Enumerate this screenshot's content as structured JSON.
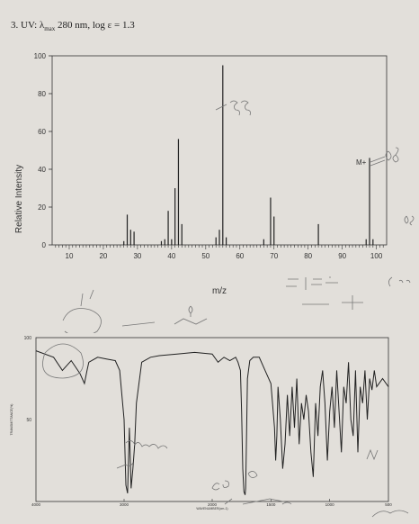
{
  "question": {
    "number": "3.",
    "uv_label": "UV: λ",
    "uv_sub": "max",
    "uv_rest": "280 nm, log ε = 1.3"
  },
  "chart_data": [
    {
      "type": "bar",
      "ylabel": "Relative Intensity",
      "xlabel": "m/z",
      "xlim": [
        5,
        103
      ],
      "ylim": [
        0,
        100
      ],
      "xticks": [
        10,
        20,
        30,
        40,
        50,
        60,
        70,
        80,
        90,
        100
      ],
      "yticks": [
        0,
        20,
        40,
        60,
        80,
        100
      ],
      "peaks": [
        {
          "mz": 26,
          "intensity": 2
        },
        {
          "mz": 27,
          "intensity": 16
        },
        {
          "mz": 28,
          "intensity": 8
        },
        {
          "mz": 29,
          "intensity": 7
        },
        {
          "mz": 37,
          "intensity": 2
        },
        {
          "mz": 38,
          "intensity": 3
        },
        {
          "mz": 39,
          "intensity": 18
        },
        {
          "mz": 40,
          "intensity": 3
        },
        {
          "mz": 41,
          "intensity": 30
        },
        {
          "mz": 42,
          "intensity": 56
        },
        {
          "mz": 43,
          "intensity": 11
        },
        {
          "mz": 53,
          "intensity": 4
        },
        {
          "mz": 54,
          "intensity": 8
        },
        {
          "mz": 55,
          "intensity": 95
        },
        {
          "mz": 56,
          "intensity": 4
        },
        {
          "mz": 67,
          "intensity": 3
        },
        {
          "mz": 69,
          "intensity": 25
        },
        {
          "mz": 70,
          "intensity": 15
        },
        {
          "mz": 83,
          "intensity": 11
        },
        {
          "mz": 97,
          "intensity": 3
        },
        {
          "mz": 98,
          "intensity": 46
        },
        {
          "mz": 99,
          "intensity": 3
        }
      ],
      "annotations": {
        "molecular_ion": "M+"
      }
    },
    {
      "type": "line",
      "ylabel": "TRANSMITTANCE(%)",
      "xlabel": "WAVENUMBER(cm-1)",
      "xticks": [
        "4000",
        "3000",
        "2000",
        "1500",
        "1000",
        "500"
      ],
      "yticks": [
        "100",
        "50"
      ],
      "x": [
        4000,
        3800,
        3700,
        3600,
        3500,
        3450,
        3420,
        3400,
        3300,
        3200,
        3100,
        3050,
        3000,
        2980,
        2960,
        2940,
        2920,
        2900,
        2880,
        2860,
        2800,
        2700,
        2600,
        2400,
        2200,
        2000,
        1950,
        1900,
        1850,
        1800,
        1780,
        1760,
        1750,
        1740,
        1730,
        1720,
        1715,
        1710,
        1700,
        1680,
        1650,
        1600,
        1550,
        1500,
        1470,
        1460,
        1450,
        1440,
        1420,
        1400,
        1380,
        1360,
        1340,
        1320,
        1300,
        1280,
        1260,
        1240,
        1220,
        1200,
        1180,
        1160,
        1140,
        1120,
        1100,
        1080,
        1060,
        1040,
        1020,
        1000,
        980,
        960,
        940,
        920,
        900,
        880,
        860,
        840,
        820,
        800,
        780,
        760,
        740,
        720,
        700,
        680,
        660,
        640,
        620,
        600,
        550,
        500
      ],
      "y": [
        92,
        88,
        80,
        86,
        78,
        72,
        80,
        85,
        88,
        87,
        86,
        80,
        50,
        10,
        5,
        45,
        8,
        20,
        35,
        60,
        85,
        88,
        89,
        90,
        91,
        90,
        85,
        88,
        86,
        88,
        85,
        80,
        55,
        20,
        6,
        4,
        8,
        30,
        75,
        86,
        88,
        88,
        80,
        72,
        45,
        25,
        40,
        70,
        50,
        20,
        35,
        65,
        40,
        70,
        45,
        75,
        35,
        60,
        50,
        65,
        55,
        30,
        15,
        60,
        40,
        70,
        80,
        60,
        25,
        55,
        70,
        45,
        80,
        55,
        30,
        70,
        60,
        85,
        50,
        40,
        80,
        30,
        70,
        60,
        80,
        50,
        75,
        68,
        80,
        70,
        75,
        70
      ]
    }
  ]
}
